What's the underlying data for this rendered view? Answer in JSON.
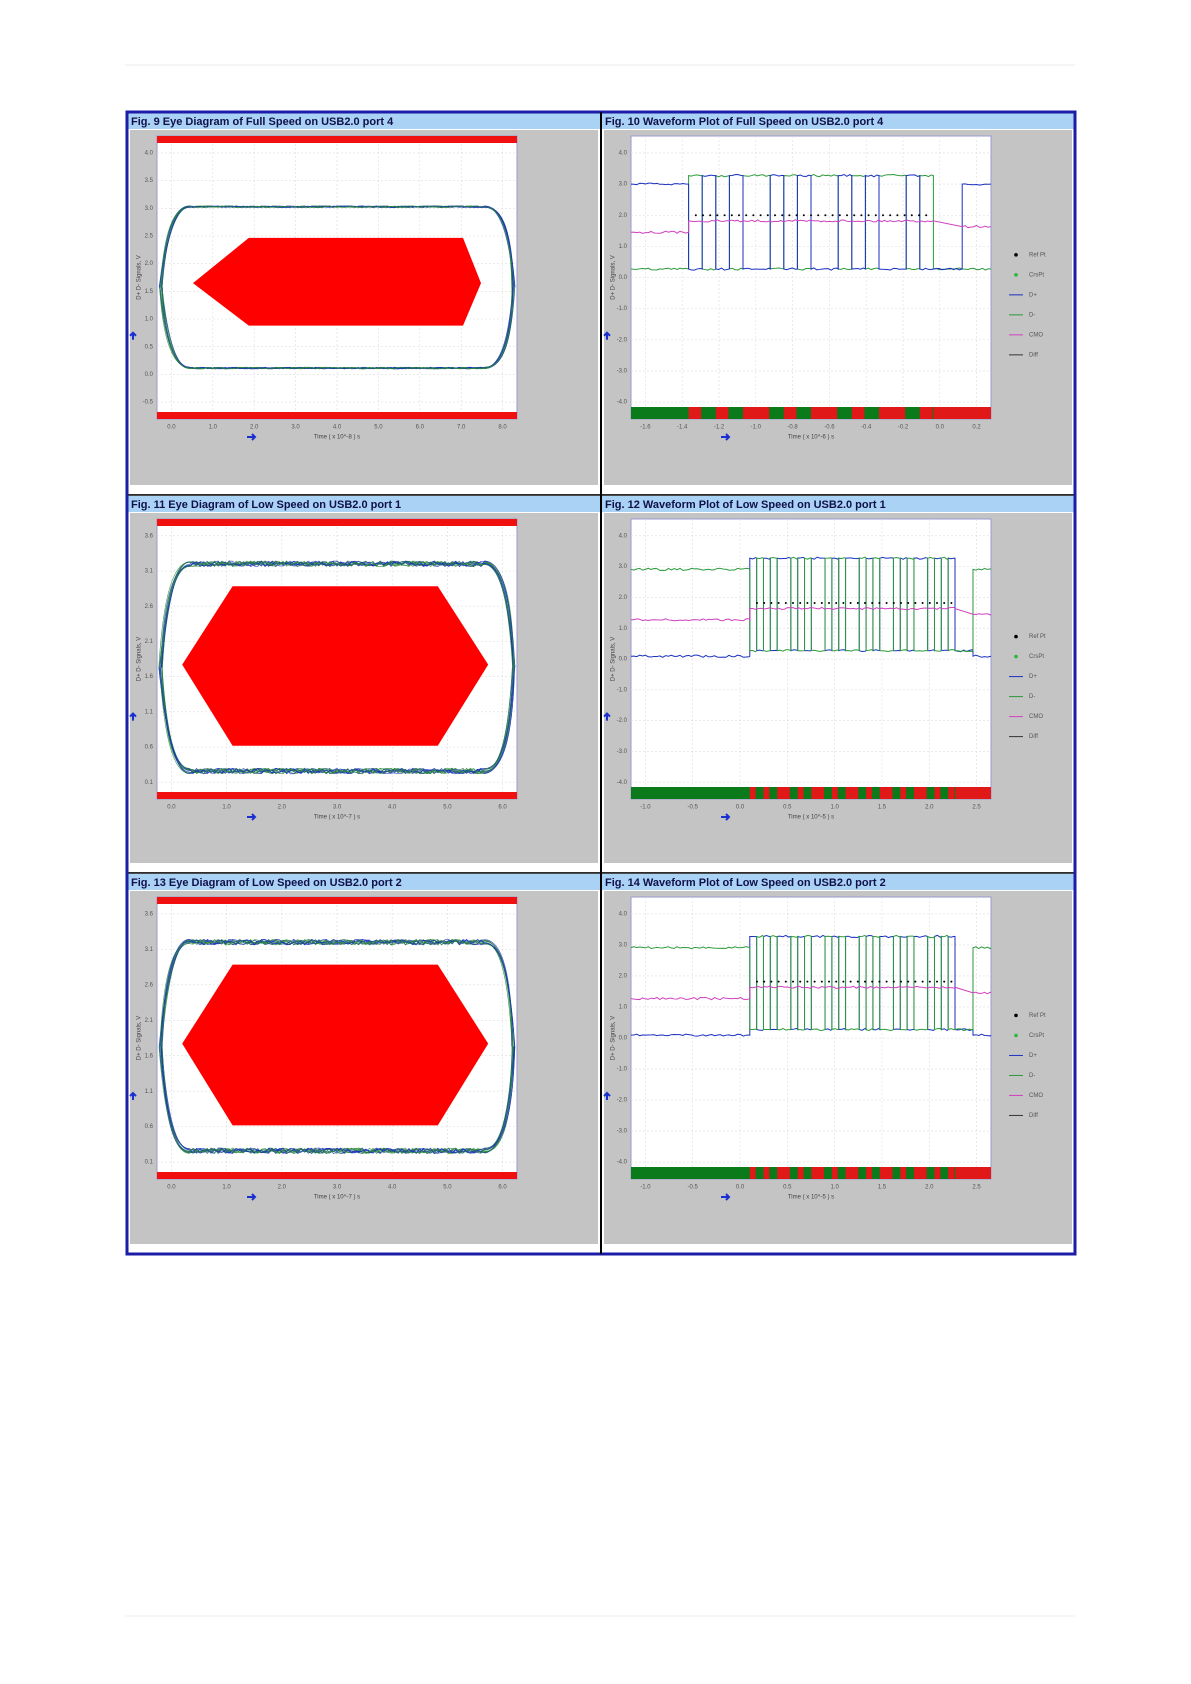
{
  "figures": [
    {
      "title": "Fig. 9 Eye Diagram of Full Speed on USB2.0 port 4",
      "kind": "eye",
      "y_label": "D+ D- Signals, V",
      "x_label": "Time ( x 10^-8 ) s",
      "yticks": [
        "4.0",
        "3.5",
        "3.0",
        "2.5",
        "2.0",
        "1.5",
        "1.0",
        "0.5",
        "0.0",
        "-0.5"
      ],
      "xticks": [
        "0.0",
        "1.0",
        "2.0",
        "3.0",
        "4.0",
        "5.0",
        "6.0",
        "7.0",
        "8.0"
      ]
    },
    {
      "title": "Fig. 10 Waveform Plot of Full Speed on USB2.0 port 4",
      "kind": "waveform",
      "y_label": "D+ D- Signals, V",
      "x_label": "Time ( x 10^-6 ) s",
      "yticks": [
        "4.0",
        "3.0",
        "2.0",
        "1.0",
        "0.0",
        "-1.0",
        "-2.0",
        "-3.0",
        "-4.0"
      ],
      "xticks": [
        "-1.6",
        "-1.4",
        "-1.2",
        "-1.0",
        "-0.8",
        "-0.6",
        "-0.4",
        "-0.2",
        "0.0",
        "0.2"
      ],
      "legend": [
        "Ref Pt",
        "CrsPt",
        "D+",
        "D-",
        "CMO",
        "Diff"
      ]
    },
    {
      "title": "Fig. 11 Eye Diagram of Low Speed on USB2.0 port 1",
      "kind": "eye",
      "y_label": "D+ D- Signals, V",
      "x_label": "Time ( x 10^-7 ) s",
      "yticks": [
        "3.6",
        "3.1",
        "2.6",
        "2.1",
        "1.6",
        "1.1",
        "0.6",
        "0.1"
      ],
      "xticks": [
        "0.0",
        "1.0",
        "2.0",
        "3.0",
        "4.0",
        "5.0",
        "6.0"
      ]
    },
    {
      "title": "Fig. 12 Waveform Plot of Low Speed on USB2.0 port 1",
      "kind": "waveform",
      "y_label": "D+ D- Signals, V",
      "x_label": "Time ( x 10^-5 ) s",
      "yticks": [
        "4.0",
        "3.0",
        "2.0",
        "1.0",
        "0.0",
        "-1.0",
        "-2.0",
        "-3.0",
        "-4.0"
      ],
      "xticks": [
        "-1.0",
        "-0.5",
        "0.0",
        "0.5",
        "1.0",
        "1.5",
        "2.0",
        "2.5"
      ],
      "legend": [
        "Ref Pt",
        "CrsPt",
        "D+",
        "D-",
        "CMO",
        "Diff"
      ]
    },
    {
      "title": "Fig. 13 Eye Diagram of Low Speed on USB2.0 port 2",
      "kind": "eye",
      "y_label": "D+ D- Signals, V",
      "x_label": "Time ( x 10^-7 ) s",
      "yticks": [
        "3.6",
        "3.1",
        "2.6",
        "2.1",
        "1.6",
        "1.1",
        "0.6",
        "0.1"
      ],
      "xticks": [
        "0.0",
        "1.0",
        "2.0",
        "3.0",
        "4.0",
        "5.0",
        "6.0"
      ]
    },
    {
      "title": "Fig. 14 Waveform Plot of Low Speed on USB2.0 port 2",
      "kind": "waveform",
      "y_label": "D+ D- Signals, V",
      "x_label": "Time ( x 10^-5 ) s",
      "yticks": [
        "4.0",
        "3.0",
        "2.0",
        "1.0",
        "0.0",
        "-1.0",
        "-2.0",
        "-3.0",
        "-4.0"
      ],
      "xticks": [
        "-1.0",
        "-0.5",
        "0.0",
        "0.5",
        "1.0",
        "1.5",
        "2.0",
        "2.5"
      ],
      "legend": [
        "Ref Pt",
        "CrsPt",
        "D+",
        "D-",
        "CMO",
        "Diff"
      ]
    }
  ]
}
